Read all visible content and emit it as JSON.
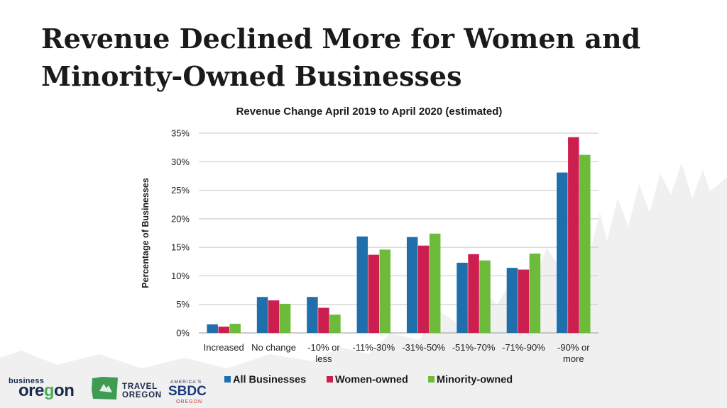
{
  "slide": {
    "title": "Revenue Declined More for Women and Minority-Owned Businesses"
  },
  "chart_data": {
    "type": "bar",
    "title": "Revenue Change April 2019 to April 2020 (estimated)",
    "xlabel": "",
    "ylabel": "Percentage of Businesses",
    "ylim": [
      0,
      35
    ],
    "yticks": [
      "0%",
      "5%",
      "10%",
      "15%",
      "20%",
      "25%",
      "30%",
      "35%"
    ],
    "categories": [
      [
        "Increased"
      ],
      [
        "No change"
      ],
      [
        "-10% or",
        "less"
      ],
      [
        "-11%-30%"
      ],
      [
        "-31%-50%"
      ],
      [
        "-51%-70%"
      ],
      [
        "-71%-90%"
      ],
      [
        "-90% or",
        "more"
      ]
    ],
    "series": [
      {
        "name": "All Businesses",
        "color": "#1f6fad",
        "values": [
          1.5,
          6.3,
          6.3,
          16.9,
          16.8,
          12.3,
          11.4,
          28.1
        ]
      },
      {
        "name": "Women-owned",
        "color": "#cc1f4f",
        "values": [
          1.1,
          5.7,
          4.4,
          13.7,
          15.3,
          13.8,
          11.1,
          34.3
        ]
      },
      {
        "name": "Minority-owned",
        "color": "#6dbb3a",
        "values": [
          1.6,
          5.1,
          3.2,
          14.6,
          17.4,
          12.7,
          13.9,
          31.2
        ]
      }
    ],
    "grid": true,
    "legend": "bottom"
  },
  "logos": {
    "business_oregon_small": "business",
    "business_oregon_big_a": "ore",
    "business_oregon_big_g": "g",
    "business_oregon_big_b": "on",
    "travel_oregon_1": "TRAVEL",
    "travel_oregon_2": "OREGON",
    "sbdc_top": "AMERICA'S",
    "sbdc_mid": "SBDC",
    "sbdc_bot": "OREGON"
  }
}
